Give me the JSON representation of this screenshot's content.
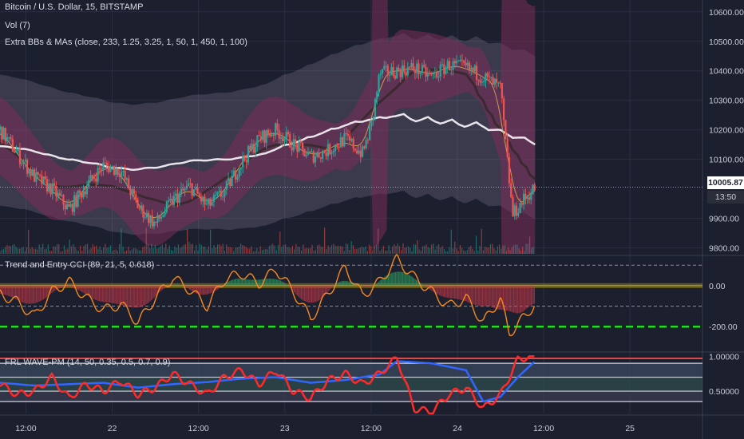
{
  "legend": {
    "symbol": "Bitcoin / U.S. Dollar, 15, BITSTAMP",
    "volume": "Vol (7)",
    "bands": "Extra BBs & MAs (close, 233, 1.25, 3.25, 1, 50, 1, 450, 1, 100)",
    "cci": "Trend and Entry CCI (89, 21, 5, 0.618)",
    "wave": "FRL WAVE-PM (14, 50, 0.35, 0.5, 0.7, 0.9)"
  },
  "price_tags": {
    "last": "10005.87",
    "timer": "13:50"
  },
  "colors": {
    "background": "#1b1f2e",
    "up": "#26a69a",
    "down": "#ef5350",
    "band_fill": "#7b2c5a",
    "cci_line": "#f58a1f",
    "signal_green": "#22dd22",
    "wave_red": "#ff2a2a",
    "wave_blue": "#3366ff"
  },
  "chart_data": [
    {
      "type": "candlestick",
      "pane": "price",
      "title": "Bitcoin / U.S. Dollar, 15, BITSTAMP",
      "y_ticks": [
        "10600.00",
        "10500.00",
        "10400.00",
        "10300.00",
        "10200.00",
        "10100.00",
        "9900.00",
        "9800.00"
      ],
      "ylim": [
        9780,
        10640
      ],
      "x_ticks": [
        "12:00",
        "22",
        "12:00",
        "23",
        "12:00",
        "24",
        "12:00",
        "25"
      ],
      "x_tick_times": [
        0.5,
        1,
        1.5,
        2,
        2.5,
        3,
        3.5,
        4
      ],
      "xlim": [
        0.35,
        4.42
      ],
      "last_price": 10005.87,
      "close_path": {
        "t": [
          0.35,
          0.45,
          0.55,
          0.65,
          0.75,
          0.85,
          0.95,
          1.05,
          1.15,
          1.25,
          1.35,
          1.45,
          1.55,
          1.65,
          1.75,
          1.85,
          1.95,
          2.05,
          2.15,
          2.25,
          2.35,
          2.45,
          2.5,
          2.55,
          2.65,
          2.75,
          2.85,
          2.95,
          3.05,
          3.15,
          3.25,
          3.28,
          3.32,
          3.38,
          3.45
        ],
        "v": [
          10200,
          10120,
          10040,
          10000,
          9930,
          10010,
          10080,
          10060,
          9940,
          9880,
          9960,
          10010,
          9940,
          9990,
          10090,
          10170,
          10200,
          10150,
          10110,
          10130,
          10170,
          10120,
          10210,
          10390,
          10400,
          10410,
          10380,
          10420,
          10410,
          10380,
          10340,
          10150,
          9910,
          9960,
          10005
        ]
      }
    },
    {
      "type": "line",
      "pane": "cci",
      "title": "Trend and Entry CCI (89, 21, 5, 0.618)",
      "y_ticks": [
        "0.00",
        "-200.00"
      ],
      "ylim": [
        -320,
        140
      ],
      "levels": [
        100,
        0,
        -100,
        -200
      ],
      "cci_path": {
        "t": [
          0.35,
          0.45,
          0.55,
          0.65,
          0.75,
          0.85,
          0.95,
          1.05,
          1.15,
          1.25,
          1.35,
          1.45,
          1.55,
          1.65,
          1.75,
          1.85,
          1.95,
          2.05,
          2.15,
          2.25,
          2.35,
          2.45,
          2.55,
          2.65,
          2.75,
          2.85,
          2.95,
          3.05,
          3.15,
          3.25,
          3.3,
          3.35,
          3.4,
          3.45
        ],
        "v": [
          -40,
          -80,
          -150,
          -30,
          20,
          -60,
          -120,
          -90,
          -180,
          -60,
          40,
          -20,
          -100,
          30,
          60,
          10,
          80,
          -30,
          -160,
          -40,
          90,
          -50,
          20,
          130,
          40,
          -30,
          -100,
          -60,
          -180,
          -60,
          -240,
          -180,
          -150,
          -80
        ]
      }
    },
    {
      "type": "line",
      "pane": "wave",
      "title": "FRL WAVE-PM (14, 50, 0.35, 0.5, 0.7, 0.9)",
      "y_ticks": [
        "1.00000",
        "0.50000"
      ],
      "ylim": [
        0.18,
        1.05
      ],
      "levels": [
        0.35,
        0.5,
        0.7,
        0.9
      ],
      "fast_path": {
        "t": [
          0.35,
          0.45,
          0.55,
          0.65,
          0.75,
          0.85,
          0.95,
          1.05,
          1.15,
          1.25,
          1.35,
          1.45,
          1.55,
          1.65,
          1.75,
          1.85,
          1.95,
          2.05,
          2.15,
          2.25,
          2.35,
          2.45,
          2.55,
          2.65,
          2.75,
          2.85,
          2.95,
          3.05,
          3.15,
          3.25,
          3.3,
          3.35,
          3.4,
          3.45
        ],
        "v": [
          0.6,
          0.45,
          0.5,
          0.7,
          0.4,
          0.6,
          0.5,
          0.65,
          0.45,
          0.55,
          0.75,
          0.6,
          0.45,
          0.7,
          0.8,
          0.6,
          0.8,
          0.5,
          0.4,
          0.65,
          0.75,
          0.6,
          0.75,
          0.98,
          0.25,
          0.2,
          0.45,
          0.55,
          0.25,
          0.45,
          0.7,
          0.95,
          0.99,
          0.97
        ]
      },
      "slow_path": {
        "t": [
          0.35,
          0.55,
          0.75,
          0.95,
          1.15,
          1.35,
          1.55,
          1.75,
          1.95,
          2.15,
          2.35,
          2.55,
          2.65,
          2.85,
          3.05,
          3.15,
          3.25,
          3.35,
          3.45
        ],
        "v": [
          0.62,
          0.58,
          0.6,
          0.62,
          0.55,
          0.6,
          0.63,
          0.68,
          0.7,
          0.62,
          0.66,
          0.74,
          0.93,
          0.9,
          0.8,
          0.35,
          0.42,
          0.7,
          0.93
        ]
      }
    }
  ]
}
